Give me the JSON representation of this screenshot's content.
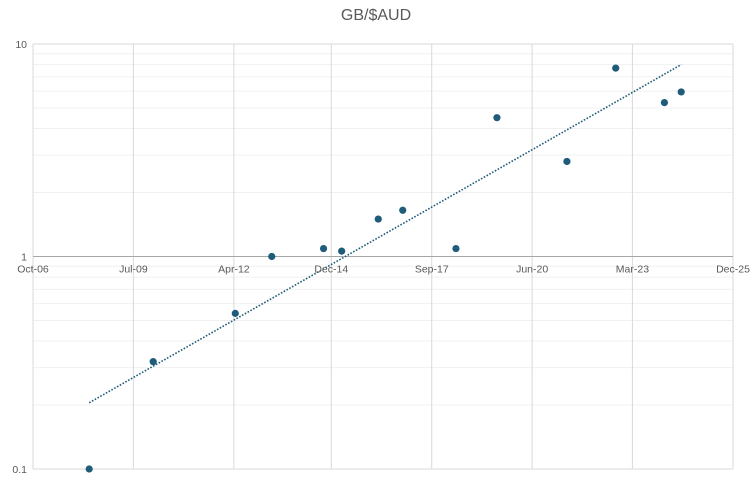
{
  "chart_data": {
    "type": "scatter",
    "title": "GB/$AUD",
    "xlabel": "",
    "ylabel": "",
    "x_axis": {
      "type": "date",
      "range": [
        "2006-10-01",
        "2025-12-01"
      ],
      "tick_values": [
        "2006-10-01",
        "2009-07-01",
        "2012-04-01",
        "2014-12-01",
        "2017-09-01",
        "2020-06-01",
        "2023-03-01",
        "2025-12-01"
      ],
      "tick_labels": [
        "Oct-06",
        "Jul-09",
        "Apr-12",
        "Dec-14",
        "Sep-17",
        "Jun-20",
        "Mar-23",
        "Dec-25"
      ]
    },
    "y_axis": {
      "scale": "log",
      "range": [
        0.1,
        10
      ],
      "tick_values": [
        0.1,
        1,
        10
      ],
      "tick_labels": [
        "0.1",
        "1",
        "10"
      ]
    },
    "grid": true,
    "legend": "none",
    "series": [
      {
        "color": "#1f5c7a",
        "points": [
          {
            "x": "2008-04-15",
            "y": 0.1
          },
          {
            "x": "2010-01-15",
            "y": 0.32
          },
          {
            "x": "2012-04-15",
            "y": 0.54
          },
          {
            "x": "2013-04-15",
            "y": 1.0
          },
          {
            "x": "2014-09-15",
            "y": 1.09
          },
          {
            "x": "2015-03-15",
            "y": 1.06
          },
          {
            "x": "2016-03-15",
            "y": 1.5
          },
          {
            "x": "2016-11-15",
            "y": 1.65
          },
          {
            "x": "2018-05-01",
            "y": 1.09
          },
          {
            "x": "2019-06-15",
            "y": 4.5
          },
          {
            "x": "2021-05-15",
            "y": 2.8
          },
          {
            "x": "2022-09-15",
            "y": 7.7
          },
          {
            "x": "2024-01-15",
            "y": 5.3
          },
          {
            "x": "2024-07-01",
            "y": 5.95
          }
        ]
      }
    ],
    "trendline": {
      "type": "exponential",
      "style": "dotted",
      "color": "#1f5c7a",
      "start": {
        "x": "2008-04-15",
        "y": 0.205
      },
      "end": {
        "x": "2024-07-01",
        "y": 8.0
      }
    }
  }
}
